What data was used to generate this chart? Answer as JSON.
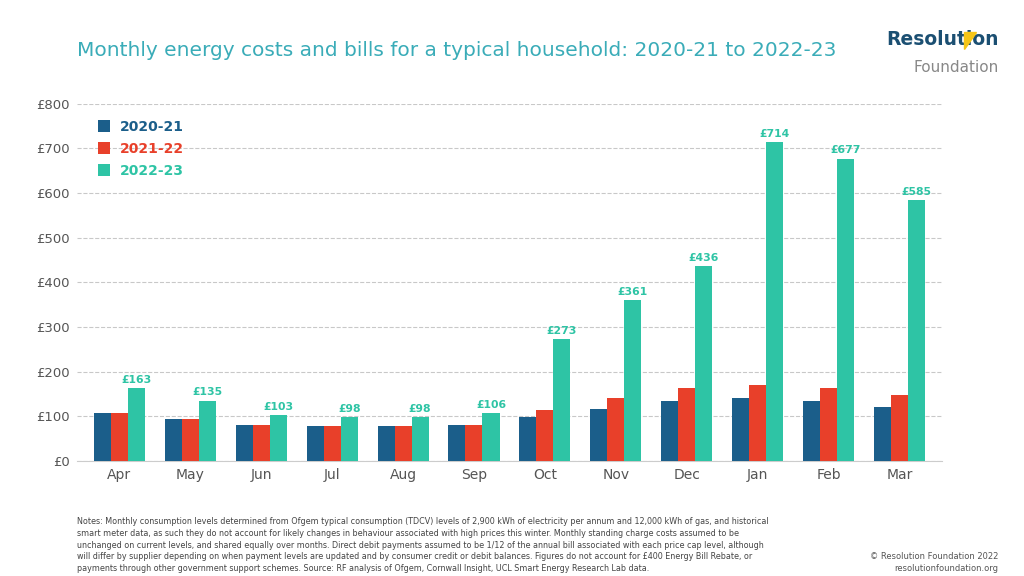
{
  "title": "Monthly energy costs and bills for a typical household: 2020-21 to 2022-23",
  "months": [
    "Apr",
    "May",
    "Jun",
    "Jul",
    "Aug",
    "Sep",
    "Oct",
    "Nov",
    "Dec",
    "Jan",
    "Feb",
    "Mar"
  ],
  "series": {
    "2020-21": [
      108,
      93,
      80,
      77,
      77,
      80,
      98,
      115,
      133,
      140,
      133,
      120
    ],
    "2021-22": [
      108,
      93,
      80,
      77,
      77,
      80,
      113,
      140,
      163,
      170,
      163,
      148
    ],
    "2022-23": [
      163,
      135,
      103,
      98,
      98,
      106,
      273,
      361,
      436,
      714,
      677,
      585
    ]
  },
  "series_colors": {
    "2020-21": "#1B5E8A",
    "2021-22": "#E8402A",
    "2022-23": "#2EC4A5"
  },
  "legend_colors": {
    "2020-21": "#1B5E8A",
    "2021-22": "#E8402A",
    "2022-23": "#2EC4A5"
  },
  "annotations": {
    "Apr": 163,
    "May": 135,
    "Jun": 103,
    "Jul": 98,
    "Aug": 98,
    "Sep": 106,
    "Oct": 273,
    "Nov": 361,
    "Dec": 436,
    "Jan": 714,
    "Feb": 677,
    "Mar": 585
  },
  "ylim": [
    0,
    800
  ],
  "yticks": [
    0,
    100,
    200,
    300,
    400,
    500,
    600,
    700,
    800
  ],
  "ytick_labels": [
    "£0",
    "£100",
    "£200",
    "£300",
    "£400",
    "£500",
    "£600",
    "£700",
    "£800"
  ],
  "bg_color": "#FFFFFF",
  "plot_bg_color": "#FFFFFF",
  "title_color": "#3AACB8",
  "grid_color": "#BBBBBB",
  "logo_resolution_color": "#1B4F72",
  "logo_foundation_color": "#888888",
  "logo_dot_color": "#F5C518",
  "footnote": "Notes: Monthly consumption levels determined from Ofgem typical consumption (TDCV) levels of 2,900 kWh of electricity per annum and 12,000 kWh of gas, and historical\nsmart meter data, as such they do not account for likely changes in behaviour associated with high prices this winter. Monthly standing charge costs assumed to be\nunchanged on current levels, and shared equally over months. Direct debit payments assumed to be 1/12 of the annual bill associated with each price cap level, although\nwill differ by supplier depending on when payment levels are updated and by consumer credit or debit balances. Figures do not account for £400 Energy Bill Rebate, or\npayments through other government support schemes. Source: RF analysis of Ofgem, Cornwall Insight, UCL Smart Energy Research Lab data.",
  "copyright_text": "© Resolution Foundation 2022\nresolutionfoundation.org"
}
